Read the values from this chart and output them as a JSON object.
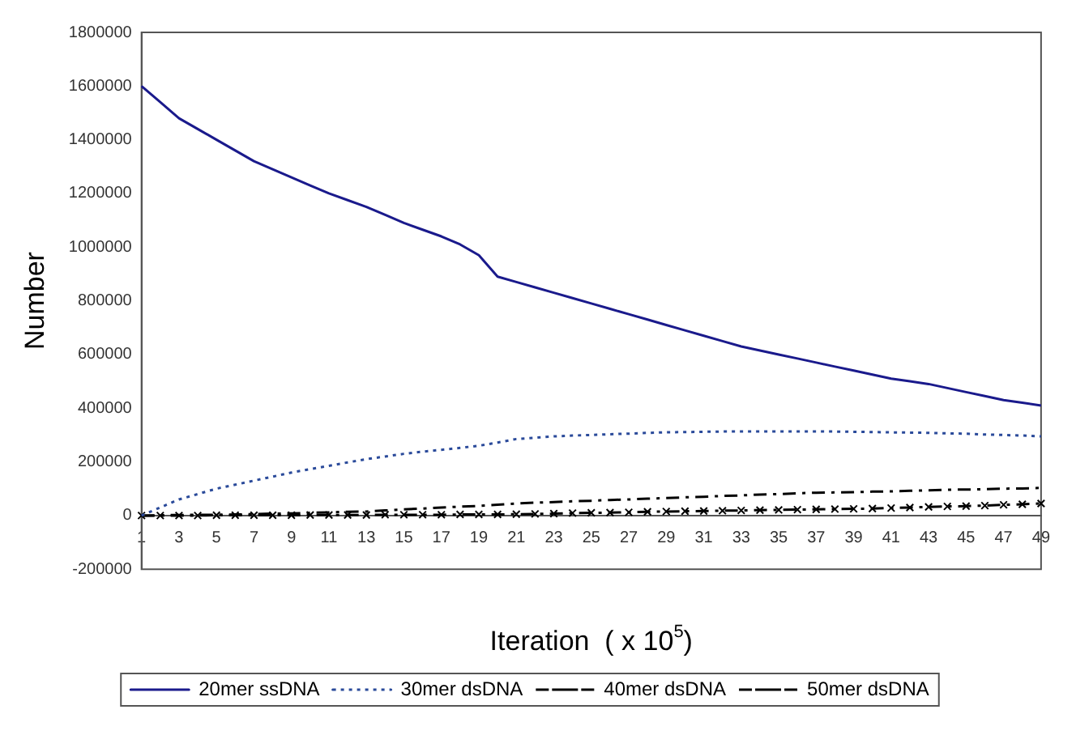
{
  "chart_data": {
    "type": "line",
    "xlabel": "Iteration  ( x 10$^{5}$)",
    "ylabel": "Number",
    "categories": [
      "1",
      null,
      "3",
      null,
      "5",
      null,
      "7",
      null,
      "9",
      null,
      "11",
      null,
      "13",
      null,
      "15",
      null,
      "17",
      null,
      "19",
      null,
      "21",
      null,
      "23",
      null,
      "25",
      null,
      "27",
      null,
      "29",
      null,
      "31",
      null,
      "33",
      null,
      "35",
      null,
      "37",
      null,
      "39",
      null,
      "41",
      null,
      "43",
      null,
      "45",
      null,
      "47",
      null,
      "49"
    ],
    "ylim": [
      -200000,
      1800000
    ],
    "yticks": [
      -200000,
      0,
      200000,
      400000,
      600000,
      800000,
      1000000,
      1200000,
      1400000,
      1600000,
      1800000
    ],
    "grid": false,
    "legend": "bottom",
    "series": [
      {
        "name": "20mer ssDNA",
        "color": "#1a1a8c",
        "line_style": "solid",
        "marker": "none",
        "values": [
          1600000,
          1540000,
          1480000,
          1440000,
          1400000,
          1360000,
          1320000,
          1290000,
          1260000,
          1230000,
          1200000,
          1175000,
          1150000,
          1120000,
          1090000,
          1065000,
          1040000,
          1010000,
          970000,
          890000,
          870000,
          850000,
          830000,
          810000,
          790000,
          770000,
          750000,
          730000,
          710000,
          690000,
          670000,
          650000,
          630000,
          615000,
          600000,
          585000,
          570000,
          555000,
          540000,
          525000,
          510000,
          500000,
          490000,
          475000,
          460000,
          445000,
          430000,
          420000,
          410000
        ]
      },
      {
        "name": "30mer dsDNA",
        "color": "#2a4a9a",
        "line_style": "dotted",
        "marker": "none",
        "values": [
          0,
          30000,
          60000,
          80000,
          100000,
          115000,
          130000,
          145000,
          160000,
          173000,
          185000,
          198000,
          210000,
          220000,
          230000,
          238000,
          245000,
          252000,
          260000,
          272000,
          285000,
          290000,
          295000,
          298000,
          300000,
          303000,
          305000,
          308000,
          310000,
          311000,
          312000,
          313000,
          313000,
          313000,
          313000,
          313000,
          313000,
          313000,
          312000,
          311000,
          310000,
          309000,
          308000,
          306000,
          305000,
          302000,
          300000,
          298000,
          295000
        ]
      },
      {
        "name": "40mer dsDNA",
        "color": "#000000",
        "line_style": "dashed",
        "marker": "none",
        "values": [
          0,
          1000,
          2000,
          3000,
          3000,
          4000,
          5000,
          7000,
          8000,
          10000,
          12000,
          14000,
          15000,
          19000,
          23000,
          26000,
          30000,
          33000,
          36000,
          40000,
          45000,
          48000,
          50000,
          53000,
          55000,
          58000,
          60000,
          63000,
          65000,
          68000,
          70000,
          73000,
          75000,
          78000,
          80000,
          83000,
          85000,
          86000,
          87000,
          89000,
          90000,
          92000,
          94000,
          96000,
          97000,
          98000,
          100000,
          101000,
          103000
        ]
      },
      {
        "name": "50mer dsDNA",
        "color": "#000000",
        "line_style": "dashed",
        "marker": "cross",
        "values": [
          0,
          0,
          0,
          0,
          1000,
          1000,
          1000,
          1000,
          1000,
          2000,
          2000,
          2000,
          2000,
          3000,
          3000,
          3000,
          3000,
          4000,
          4000,
          4000,
          5000,
          6000,
          7000,
          9000,
          10000,
          11000,
          12000,
          14000,
          15000,
          16000,
          17000,
          18000,
          19000,
          20000,
          21000,
          22000,
          23000,
          24000,
          25000,
          26000,
          28000,
          30000,
          32000,
          34000,
          35000,
          37000,
          40000,
          42000,
          45000
        ]
      }
    ]
  }
}
